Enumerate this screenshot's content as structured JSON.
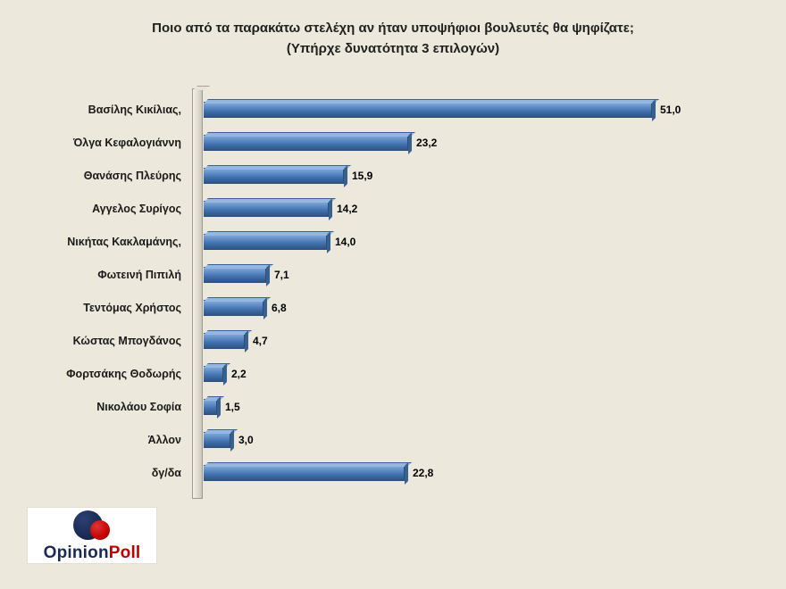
{
  "page": {
    "background_color": "#ECE8DC"
  },
  "chart_data": {
    "type": "bar",
    "orientation": "horizontal",
    "title": "Ποιο από τα παρακάτω στελέχη αν ήταν υποψήφιοι βουλευτές θα ψηφίζατε;",
    "subtitle": "(Υπήρχε δυνατότητα 3 επιλογών)",
    "categories": [
      "Βασίλης Κικίλιας,",
      "Όλγα Κεφαλογιάννη",
      "Θανάσης Πλεύρης",
      "Αγγελος Συρίγος",
      "Νικήτας Κακλαμάνης,",
      "Φωτεινή Πιπιλή",
      "Τεντόμας Χρήστος",
      "Κώστας Μπογδάνος",
      "Φορτσάκης Θοδωρής",
      "Νικολάου Σοφία",
      "Άλλον",
      "δγ/δα"
    ],
    "values": [
      51.0,
      23.2,
      15.9,
      14.2,
      14.0,
      7.1,
      6.8,
      4.7,
      2.2,
      1.5,
      3.0,
      22.8
    ],
    "value_labels": [
      "51,0",
      "23,2",
      "15,9",
      "14,2",
      "14,0",
      "7,1",
      "6,8",
      "4,7",
      "2,2",
      "1,5",
      "3,0",
      "22,8"
    ],
    "xlim": [
      0,
      55
    ],
    "bar_color": "#4F81BD",
    "grid": false,
    "legend": "none"
  },
  "logo": {
    "text_primary": "Opinion",
    "text_secondary": "Poll",
    "color_primary": "#1B2A55",
    "color_secondary": "#C00000"
  }
}
